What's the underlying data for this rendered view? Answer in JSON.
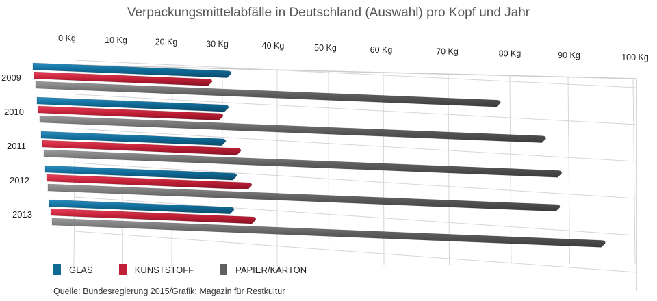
{
  "chart_data": {
    "type": "bar",
    "orientation": "horizontal-3d",
    "title": "Verpackungsmittelabfälle in Deutschland (Auswahl) pro Kopf und Jahr",
    "categories": [
      "2009",
      "2010",
      "2011",
      "2012",
      "2013"
    ],
    "series": [
      {
        "name": "GLAS",
        "color": "#0f6a96",
        "values": [
          29,
          28,
          27,
          28,
          27
        ]
      },
      {
        "name": "KUNSTSTOFF",
        "color": "#c01f35",
        "values": [
          26,
          27,
          29,
          30,
          30
        ]
      },
      {
        "name": "PAPIER/KARTON",
        "color": "#5f5f5f",
        "values": [
          79,
          86,
          88,
          87,
          94
        ]
      }
    ],
    "xticks": [
      "0 Kg",
      "10 Kg",
      "20 Kg",
      "30 Kg",
      "40 Kg",
      "50 Kg",
      "60 Kg",
      "70 Kg",
      "80 Kg",
      "90 Kg",
      "100 Kg"
    ],
    "xlim": [
      0,
      100
    ],
    "grid": true,
    "legend": "bottom-left",
    "source": "Quelle: Bundesregierung 2015/Grafik: Magazin für Restkultur"
  }
}
